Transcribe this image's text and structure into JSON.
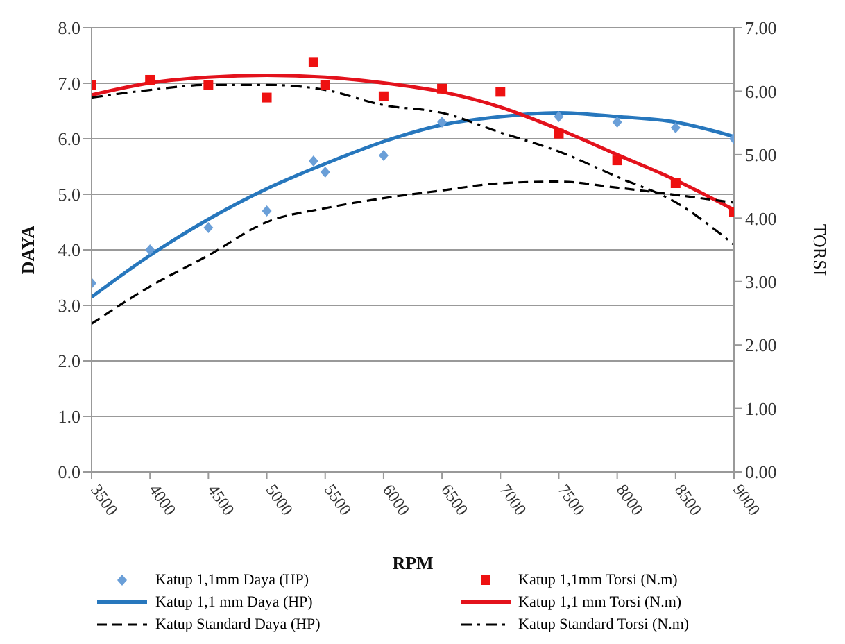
{
  "chart_data": {
    "type": "line",
    "xlabel": "RPM",
    "ylabel": "DAYA",
    "y2label": "TORSI",
    "xlim": [
      3500,
      9000
    ],
    "xticks": [
      3500,
      4000,
      4500,
      5000,
      5500,
      6000,
      6500,
      7000,
      7500,
      8000,
      8500,
      9000
    ],
    "ylim": [
      0,
      8
    ],
    "yticks": [
      {
        "value": 0,
        "label": "0.0"
      },
      {
        "value": 1,
        "label": "1.0"
      },
      {
        "value": 2,
        "label": "2.0"
      },
      {
        "value": 3,
        "label": "3.0"
      },
      {
        "value": 4,
        "label": "4.0"
      },
      {
        "value": 5,
        "label": "5.0"
      },
      {
        "value": 6,
        "label": "6.0"
      },
      {
        "value": 7,
        "label": "7.0"
      },
      {
        "value": 8,
        "label": "8.0"
      }
    ],
    "y2lim": [
      0,
      7
    ],
    "y2ticks": [
      {
        "value": 0,
        "label": "0.00"
      },
      {
        "value": 1,
        "label": "1.00"
      },
      {
        "value": 2,
        "label": "2.00"
      },
      {
        "value": 3,
        "label": "3.00"
      },
      {
        "value": 4,
        "label": "4.00"
      },
      {
        "value": 5,
        "label": "5.00"
      },
      {
        "value": 6,
        "label": "6.00"
      },
      {
        "value": 7,
        "label": "7.00"
      }
    ],
    "grid": "y",
    "legend": "bottom",
    "series": [
      {
        "name": "Katup 1,1mm Daya (HP)",
        "type": "scatter",
        "marker": "diamond",
        "color": "#6a9fd8",
        "x": [
          3500,
          4000,
          4500,
          5000,
          5400,
          5500,
          6000,
          6500,
          7500,
          8000,
          8500,
          9000
        ],
        "values": [
          3.4,
          4.0,
          4.4,
          4.7,
          5.6,
          5.4,
          5.7,
          6.3,
          6.4,
          6.3,
          6.2,
          6.0
        ]
      },
      {
        "name": "Katup 1,1mm Torsi (N.m)",
        "type": "scatter",
        "marker": "square",
        "axis": "y2",
        "color": "#ee1111",
        "x": [
          3500,
          4000,
          4500,
          5000,
          5400,
          5500,
          6000,
          6500,
          7000,
          7500,
          8000,
          8500,
          9000
        ],
        "values": [
          6.1,
          6.18,
          6.1,
          5.9,
          6.46,
          6.1,
          5.92,
          6.04,
          5.99,
          5.33,
          4.91,
          4.55,
          4.1
        ]
      },
      {
        "name": "Katup 1,1 mm Daya (HP)",
        "line_style": "solid",
        "color": "#2777bd",
        "x": [
          3500,
          4000,
          4500,
          5000,
          5500,
          6000,
          6500,
          7000,
          7500,
          8000,
          8500,
          9000
        ],
        "values": [
          3.15,
          3.9,
          4.55,
          5.1,
          5.55,
          5.95,
          6.25,
          6.4,
          6.47,
          6.4,
          6.3,
          6.04
        ]
      },
      {
        "name": "Katup 1,1 mm Torsi (N.m)",
        "line_style": "solid",
        "axis": "y2",
        "color": "#e3121c",
        "x": [
          3500,
          4000,
          4500,
          5000,
          5500,
          6000,
          6500,
          7000,
          7500,
          8000,
          8500,
          9000
        ],
        "values": [
          5.94,
          6.13,
          6.22,
          6.25,
          6.22,
          6.13,
          5.99,
          5.75,
          5.4,
          5.0,
          4.6,
          4.13
        ]
      },
      {
        "name": "Katup Standard Daya (HP)",
        "line_style": "dashed",
        "color": "#000000",
        "x": [
          3500,
          4000,
          4500,
          5000,
          5500,
          6000,
          6500,
          7000,
          7500,
          8000,
          8500,
          9000
        ],
        "values": [
          2.67,
          3.34,
          3.9,
          4.5,
          4.75,
          4.93,
          5.07,
          5.2,
          5.23,
          5.12,
          4.99,
          4.85
        ]
      },
      {
        "name": "Katup Standard Torsi (N.m)",
        "line_style": "dashdot",
        "axis": "y2",
        "color": "#000000",
        "x": [
          3500,
          4000,
          4500,
          5000,
          5500,
          6000,
          6500,
          7000,
          7500,
          8000,
          8500,
          9000
        ],
        "values": [
          5.9,
          6.02,
          6.1,
          6.1,
          6.02,
          5.78,
          5.66,
          5.35,
          5.05,
          4.65,
          4.25,
          3.58
        ]
      }
    ]
  }
}
